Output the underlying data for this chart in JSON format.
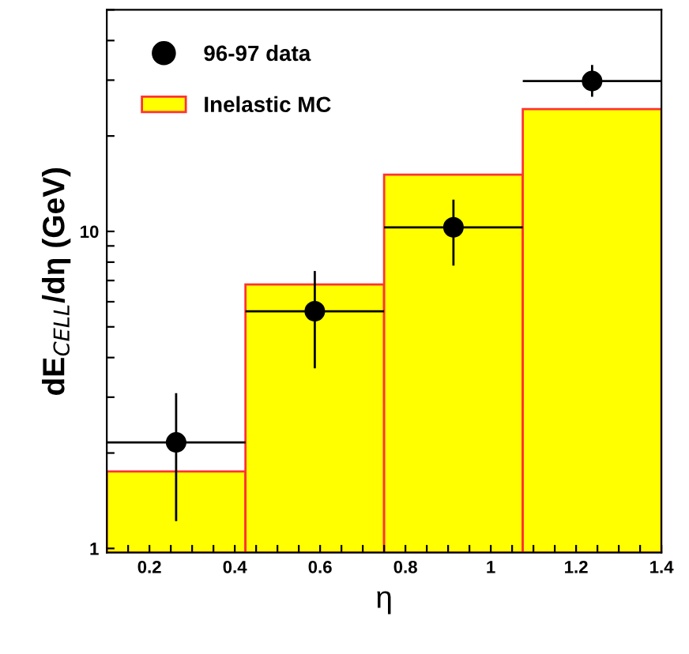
{
  "chart_data": {
    "type": "histogram",
    "xlabel": "η",
    "ylabel": "dE$_{CELL}$/dη (GeV)",
    "log": "y",
    "legend": "top left",
    "grid": false,
    "xlim": [
      0.1,
      1.4
    ],
    "xticks": [
      {
        "value": 0.15,
        "label": null
      },
      0.2,
      {
        "value": 0.25,
        "label": null
      },
      {
        "value": 0.3,
        "label": null
      },
      {
        "value": 0.35,
        "label": null
      },
      0.4,
      {
        "value": 0.45,
        "label": null
      },
      {
        "value": 0.5,
        "label": null
      },
      {
        "value": 0.55,
        "label": null
      },
      0.6,
      {
        "value": 0.65,
        "label": null
      },
      {
        "value": 0.7,
        "label": null
      },
      {
        "value": 0.75,
        "label": null
      },
      0.8,
      {
        "value": 0.85,
        "label": null
      },
      {
        "value": 0.9,
        "label": null
      },
      {
        "value": 0.95,
        "label": null
      },
      1,
      {
        "value": 1.05,
        "label": null
      },
      {
        "value": 1.1,
        "label": null
      },
      {
        "value": 1.15,
        "label": null
      },
      1.2,
      {
        "value": 1.25,
        "label": null
      },
      {
        "value": 1.3,
        "label": null
      },
      {
        "value": 1.35,
        "label": null
      },
      1.4
    ],
    "ylim": [
      0.97,
      50
    ],
    "yticks": [
      1,
      {
        "value": 2,
        "label": null
      },
      {
        "value": 3,
        "label": null
      },
      {
        "value": 4,
        "label": null
      },
      {
        "value": 5,
        "label": null
      },
      {
        "value": 6,
        "label": null
      },
      {
        "value": 7,
        "label": null
      },
      {
        "value": 8,
        "label": null
      },
      {
        "value": 9,
        "label": null
      },
      10,
      {
        "value": 20,
        "label": null
      },
      {
        "value": 30,
        "label": null
      },
      {
        "value": 40,
        "label": null
      },
      {
        "value": 50,
        "label": null
      }
    ],
    "series": [
      {
        "name": "Inelastic MC",
        "bins": [
          0.1,
          0.425,
          0.75,
          1.075,
          1.4
        ],
        "values": [
          1.75,
          6.8,
          15.1,
          24.3
        ],
        "color": "#ffff00"
      },
      {
        "name": "96-97 data",
        "type": "scatter",
        "marker": "circle",
        "color": "#000000",
        "x": [
          0.2625,
          0.5875,
          0.9125,
          1.2375
        ],
        "values": [
          2.16,
          5.6,
          10.3,
          29.8
        ],
        "errors": [
          [
            1.22,
            3.09
          ],
          [
            3.7,
            7.5
          ],
          [
            7.8,
            12.6
          ],
          [
            26.6,
            33.5
          ]
        ],
        "xerrors": [
          0.1625,
          0.1625,
          0.1625,
          0.1625
        ]
      }
    ]
  }
}
